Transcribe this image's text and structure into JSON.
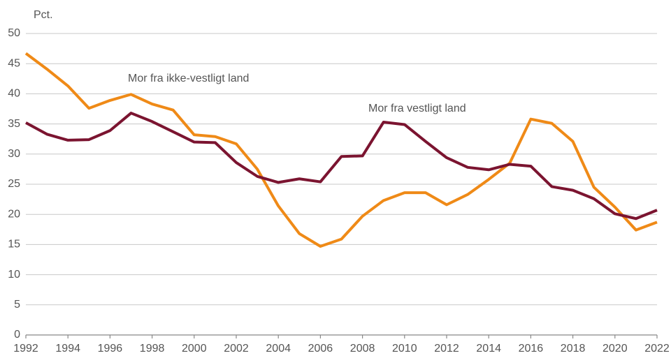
{
  "chart_data": {
    "type": "line",
    "y_label": "Pct.",
    "x": [
      1992,
      1993,
      1994,
      1995,
      1996,
      1997,
      1998,
      1999,
      2000,
      2001,
      2002,
      2003,
      2004,
      2005,
      2006,
      2007,
      2008,
      2009,
      2010,
      2011,
      2012,
      2013,
      2014,
      2015,
      2016,
      2017,
      2018,
      2019,
      2020,
      2021,
      2022
    ],
    "series": [
      {
        "name": "Mor fra ikke-vestligt land",
        "color": "#ef8a17",
        "values": [
          46.7,
          44.1,
          41.3,
          37.6,
          38.9,
          39.9,
          38.3,
          37.3,
          33.2,
          32.9,
          31.7,
          27.5,
          21.4,
          16.8,
          14.7,
          15.9,
          19.7,
          22.3,
          23.6,
          23.6,
          21.6,
          23.3,
          25.8,
          28.5,
          35.8,
          35.1,
          32.1,
          24.5,
          21.2,
          17.4,
          18.7
        ]
      },
      {
        "name": "Mor fra vestligt land",
        "color": "#7b1430",
        "values": [
          35.2,
          33.3,
          32.3,
          32.4,
          33.9,
          36.8,
          35.4,
          33.7,
          32.0,
          31.9,
          28.6,
          26.3,
          25.3,
          25.9,
          25.4,
          29.6,
          29.7,
          35.3,
          34.9,
          32.1,
          29.4,
          27.8,
          27.4,
          28.3,
          28.0,
          24.6,
          24.0,
          22.6,
          20.1,
          19.3,
          20.7
        ]
      }
    ],
    "xlim": [
      1992,
      2022
    ],
    "xticks": [
      1992,
      1994,
      1996,
      1998,
      2000,
      2002,
      2004,
      2006,
      2008,
      2010,
      2012,
      2014,
      2016,
      2018,
      2020,
      2022
    ],
    "ylim": [
      0,
      50
    ],
    "yticks": [
      0,
      5,
      10,
      15,
      20,
      25,
      30,
      35,
      40,
      45,
      50
    ],
    "grid": true
  }
}
